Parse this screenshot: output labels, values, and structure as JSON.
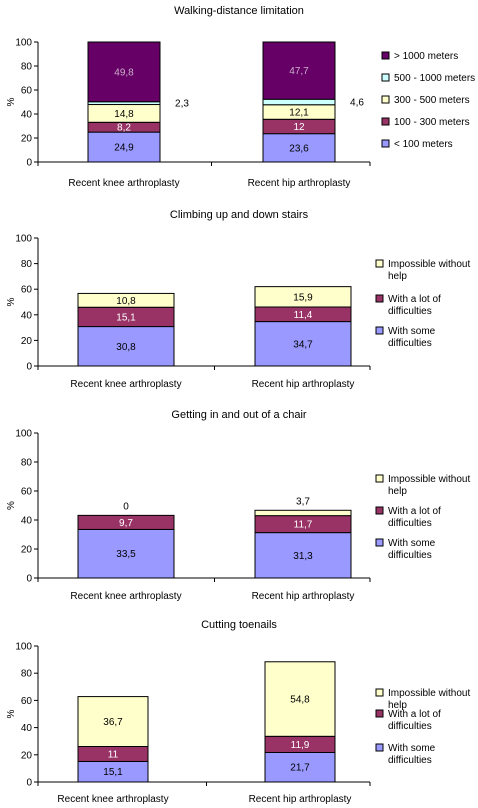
{
  "colors": {
    "lt100": "#9999ff",
    "r100_300": "#993366",
    "r300_500": "#ffffcc",
    "r500_1000": "#ccffff",
    "gt1000": "#660066",
    "some": "#9999ff",
    "alot": "#993366",
    "impossible": "#ffffcc"
  },
  "chart_data": [
    {
      "type": "bar",
      "stacked": true,
      "title": "Walking-distance limitation",
      "ylabel": "%",
      "ylim": [
        0,
        100
      ],
      "yticks": [
        "0",
        "20",
        "40",
        "60",
        "80",
        "100"
      ],
      "categories": [
        "Recent knee arthroplasty",
        "Recent hip arthroplasty"
      ],
      "legend_position": "right",
      "series": [
        {
          "name": "< 100 meters",
          "color_key": "lt100",
          "values": [
            24.9,
            23.6
          ],
          "labels": [
            "24,9",
            "23,6"
          ],
          "label_side": [
            "in",
            "in"
          ]
        },
        {
          "name": "100 - 300 meters",
          "color_key": "r100_300",
          "values": [
            8.2,
            12
          ],
          "labels": [
            "8,2",
            "12"
          ],
          "label_side": [
            "in",
            "in"
          ]
        },
        {
          "name": "300 - 500 meters",
          "color_key": "r300_500",
          "values": [
            14.8,
            12.1
          ],
          "labels": [
            "14,8",
            "12,1"
          ],
          "label_side": [
            "in",
            "in"
          ]
        },
        {
          "name": "500 - 1000 meters",
          "color_key": "r500_1000",
          "values": [
            2.3,
            4.6
          ],
          "labels": [
            "2,3",
            "4,6"
          ],
          "label_side": [
            "right",
            "right"
          ]
        },
        {
          "name": "> 1000 meters",
          "color_key": "gt1000",
          "values": [
            49.8,
            47.7
          ],
          "labels": [
            "49,8",
            "47,7"
          ],
          "label_side": [
            "in",
            "in"
          ]
        }
      ]
    },
    {
      "type": "bar",
      "stacked": true,
      "title": "Climbing up and down stairs",
      "ylabel": "%",
      "ylim": [
        0,
        100
      ],
      "yticks": [
        "0",
        "20",
        "40",
        "60",
        "80",
        "100"
      ],
      "categories": [
        "Recent knee arthroplasty",
        "Recent hip arthroplasty"
      ],
      "legend_position": "right",
      "series": [
        {
          "name": "With some difficulties",
          "color_key": "some",
          "values": [
            30.8,
            34.7
          ],
          "labels": [
            "30,8",
            "34,7"
          ],
          "label_side": [
            "in",
            "in"
          ]
        },
        {
          "name": "With a lot of difficulties",
          "color_key": "alot",
          "values": [
            15.1,
            11.4
          ],
          "labels": [
            "15,1",
            "11,4"
          ],
          "label_side": [
            "in",
            "in"
          ]
        },
        {
          "name": "Impossible without help",
          "color_key": "impossible",
          "values": [
            10.8,
            15.9
          ],
          "labels": [
            "10,8",
            "15,9"
          ],
          "label_side": [
            "in",
            "in"
          ]
        }
      ]
    },
    {
      "type": "bar",
      "stacked": true,
      "title": "Getting in and out of a chair",
      "ylabel": "%",
      "ylim": [
        0,
        100
      ],
      "yticks": [
        "0",
        "20",
        "40",
        "60",
        "80",
        "100"
      ],
      "categories": [
        "Recent knee arthroplasty",
        "Recent hip arthroplasty"
      ],
      "legend_position": "right",
      "series": [
        {
          "name": "With some difficulties",
          "color_key": "some",
          "values": [
            33.5,
            31.3
          ],
          "labels": [
            "33,5",
            "31,3"
          ],
          "label_side": [
            "in",
            "in"
          ]
        },
        {
          "name": "With a lot of difficulties",
          "color_key": "alot",
          "values": [
            9.7,
            11.7
          ],
          "labels": [
            "9,7",
            "11,7"
          ],
          "label_side": [
            "in",
            "in"
          ]
        },
        {
          "name": "Impossible without help",
          "color_key": "impossible",
          "values": [
            0,
            3.7
          ],
          "labels": [
            "0",
            "3,7"
          ],
          "label_side": [
            "above",
            "above"
          ]
        }
      ]
    },
    {
      "type": "bar",
      "stacked": true,
      "title": "Cutting toenails",
      "ylabel": "%",
      "ylim": [
        0,
        100
      ],
      "yticks": [
        "0",
        "20",
        "40",
        "60",
        "80",
        "100"
      ],
      "categories": [
        "Recent knee arthroplasty",
        "Recent hip arthroplasty"
      ],
      "legend_position": "right",
      "series": [
        {
          "name": "With some difficulties",
          "color_key": "some",
          "values": [
            15.1,
            21.7
          ],
          "labels": [
            "15,1",
            "21,7"
          ],
          "label_side": [
            "in",
            "in"
          ]
        },
        {
          "name": "With a lot of difficulties",
          "color_key": "alot",
          "values": [
            11,
            11.9
          ],
          "labels": [
            "11",
            "11,9"
          ],
          "label_side": [
            "in",
            "in"
          ]
        },
        {
          "name": "Impossible without help",
          "color_key": "impossible",
          "values": [
            36.7,
            54.8
          ],
          "labels": [
            "36,7",
            "54,8"
          ],
          "label_side": [
            "in",
            "in"
          ]
        }
      ]
    }
  ]
}
